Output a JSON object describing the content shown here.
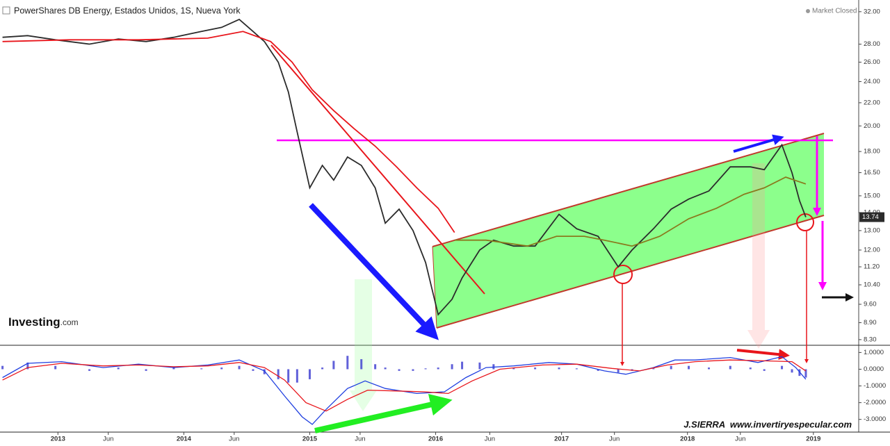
{
  "header": {
    "title": "PowerShares DB Energy, Estados Unidos, 1S, Nueva York",
    "status": "Market Closed"
  },
  "branding": {
    "logo": "Investing",
    "logo_suffix": ".com",
    "credit": "J.SIERRA  www.invertiryespecular.com"
  },
  "chart_data": [
    {
      "type": "line",
      "log_scale": true,
      "xlim": [
        2012.54,
        2019.36
      ],
      "ylim": [
        8.11,
        33.1
      ],
      "yticks": [
        {
          "value": 32,
          "label": "32.00"
        },
        {
          "value": 28,
          "label": "28.00"
        },
        {
          "value": 26,
          "label": "26.00"
        },
        {
          "value": 24,
          "label": "24.00"
        },
        {
          "value": 22,
          "label": "22.00"
        },
        {
          "value": 20,
          "label": "20.00"
        },
        {
          "value": 18,
          "label": "18.00"
        },
        {
          "value": 16.5,
          "label": "16.50"
        },
        {
          "value": 15,
          "label": "15.00"
        },
        {
          "value": 14,
          "label": "14.00"
        },
        {
          "value": 13,
          "label": "13.00"
        },
        {
          "value": 12,
          "label": "12.00"
        },
        {
          "value": 11.2,
          "label": "11.20"
        },
        {
          "value": 10.4,
          "label": "10.40"
        },
        {
          "value": 9.6,
          "label": "9.60"
        },
        {
          "value": 8.9,
          "label": "8.90"
        },
        {
          "value": 8.3,
          "label": "8.30"
        }
      ],
      "series": [
        {
          "color": "#2b2b2b",
          "x": [
            2012.56,
            2012.76,
            2012.98,
            2013.25,
            2013.48,
            2013.7,
            2013.92,
            2014.14,
            2014.3,
            2014.44,
            2014.55,
            2014.64,
            2014.75,
            2014.83,
            2014.9,
            2015.0,
            2015.1,
            2015.19,
            2015.3,
            2015.41,
            2015.52,
            2015.6,
            2015.71,
            2015.82,
            2015.92,
            2016.02,
            2016.13,
            2016.21,
            2016.35,
            2016.46,
            2016.62,
            2016.79,
            2016.98,
            2017.12,
            2017.29,
            2017.45,
            2017.56,
            2017.73,
            2017.87,
            2018.01,
            2018.17,
            2018.34,
            2018.5,
            2018.61,
            2018.75,
            2018.83,
            2018.89,
            2018.94
          ],
          "values": [
            28.8,
            29.0,
            28.5,
            28.0,
            28.6,
            28.3,
            28.8,
            29.5,
            30.0,
            31.0,
            29.5,
            28.3,
            26.0,
            23.0,
            19.5,
            15.5,
            17.0,
            16.0,
            17.6,
            17.0,
            15.5,
            13.4,
            14.2,
            13.0,
            11.4,
            9.2,
            9.8,
            10.7,
            12.0,
            12.5,
            12.2,
            12.2,
            13.9,
            13.1,
            12.7,
            11.2,
            12.0,
            13.1,
            14.2,
            14.8,
            15.3,
            16.9,
            16.9,
            16.7,
            18.5,
            16.5,
            14.7,
            13.74
          ]
        },
        {
          "color": "#e8151b",
          "x": [
            2012.56,
            2013.09,
            2013.64,
            2014.19,
            2014.47,
            2014.69,
            2014.86,
            2015.02,
            2015.19,
            2015.35,
            2015.52,
            2015.69,
            2015.85,
            2016.02,
            2016.15
          ],
          "values": [
            28.3,
            28.5,
            28.5,
            28.7,
            29.5,
            28.3,
            26.0,
            23.2,
            21.3,
            19.8,
            18.4,
            16.9,
            15.5,
            14.25,
            12.9
          ]
        },
        {
          "color": "#8a7a1e",
          "x": [
            2016.15,
            2016.4,
            2016.73,
            2016.96,
            2017.18,
            2017.34,
            2017.56,
            2017.78,
            2018.01,
            2018.23,
            2018.45,
            2018.61,
            2018.78,
            2018.94
          ],
          "values": [
            12.5,
            12.5,
            12.2,
            12.7,
            12.7,
            12.5,
            12.2,
            12.7,
            13.65,
            14.25,
            15.1,
            15.5,
            16.2,
            15.75
          ]
        }
      ]
    },
    {
      "type": "macd",
      "xlim": [
        2012.54,
        2019.36
      ],
      "ylim": [
        -3.76,
        1.39
      ],
      "yticks": [
        {
          "value": 1,
          "label": "1.0000"
        },
        {
          "value": 0,
          "label": "0.0000"
        },
        {
          "value": -1,
          "label": "-1.0000"
        },
        {
          "value": -2,
          "label": "-2.0000"
        },
        {
          "value": -3,
          "label": "-3.0000"
        }
      ],
      "xticks": [
        2013,
        {
          "value": 2013.4,
          "label": "Jun"
        },
        2014,
        {
          "value": 2014.4,
          "label": "Jun"
        },
        2015,
        {
          "value": 2015.4,
          "label": "Jun"
        },
        2016,
        {
          "value": 2016.43,
          "label": "Jun"
        },
        2017,
        {
          "value": 2017.42,
          "label": "Jun"
        },
        2018,
        {
          "value": 2018.42,
          "label": "Jun"
        },
        2019
      ],
      "series": [
        {
          "type": "bar",
          "color": "#3a3ad0",
          "x": [
            2012.56,
            2012.76,
            2012.98,
            2013.25,
            2013.48,
            2013.7,
            2013.92,
            2014.14,
            2014.3,
            2014.44,
            2014.55,
            2014.64,
            2014.75,
            2014.83,
            2014.9,
            2015.0,
            2015.1,
            2015.19,
            2015.3,
            2015.41,
            2015.52,
            2015.6,
            2015.71,
            2015.82,
            2015.92,
            2016.02,
            2016.13,
            2016.21,
            2016.35,
            2016.46,
            2016.62,
            2016.79,
            2016.98,
            2017.12,
            2017.29,
            2017.45,
            2017.56,
            2017.73,
            2017.87,
            2018.01,
            2018.17,
            2018.34,
            2018.5,
            2018.61,
            2018.75,
            2018.83,
            2018.89,
            2018.94
          ],
          "values": [
            0.2,
            0.4,
            0.2,
            -0.1,
            0.1,
            -0.1,
            0.1,
            0.05,
            0.1,
            0.2,
            -0.1,
            -0.3,
            -0.6,
            -0.8,
            -0.8,
            -0.6,
            0.1,
            0.5,
            0.8,
            0.6,
            0.3,
            0.1,
            -0.1,
            -0.1,
            0.05,
            0.1,
            0.3,
            0.45,
            0.4,
            0.3,
            0.1,
            0.1,
            0.1,
            0.05,
            -0.1,
            -0.2,
            -0.1,
            0.1,
            0.2,
            0.2,
            0.1,
            0.2,
            0.1,
            -0.1,
            0.2,
            -0.2,
            -0.4,
            -0.5
          ]
        },
        {
          "type": "line",
          "color": "#1f3fe0",
          "x": [
            2012.56,
            2012.76,
            2013.03,
            2013.36,
            2013.64,
            2013.92,
            2014.19,
            2014.44,
            2014.64,
            2014.8,
            2014.94,
            2015.02,
            2015.13,
            2015.3,
            2015.44,
            2015.6,
            2015.85,
            2016.07,
            2016.24,
            2016.4,
            2016.62,
            2016.9,
            2017.12,
            2017.34,
            2017.51,
            2017.73,
            2017.9,
            2018.06,
            2018.34,
            2018.56,
            2018.75,
            2018.86,
            2018.94
          ],
          "values": [
            -0.5,
            0.35,
            0.45,
            0.1,
            0.3,
            0.1,
            0.25,
            0.55,
            -0.1,
            -1.6,
            -2.85,
            -3.3,
            -2.4,
            -1.15,
            -0.7,
            -1.15,
            -1.45,
            -1.35,
            -0.5,
            0.1,
            0.2,
            0.4,
            0.3,
            -0.1,
            -0.3,
            0.1,
            0.55,
            0.55,
            0.7,
            0.4,
            0.75,
            0.1,
            -0.6
          ]
        },
        {
          "type": "line",
          "color": "#e8151b",
          "x": [
            2012.56,
            2012.76,
            2013.03,
            2013.36,
            2013.64,
            2013.92,
            2014.19,
            2014.44,
            2014.64,
            2014.8,
            2014.97,
            2015.13,
            2015.3,
            2015.46,
            2015.69,
            2015.91,
            2016.1,
            2016.29,
            2016.51,
            2016.85,
            2017.12,
            2017.4,
            2017.62,
            2017.84,
            2018.06,
            2018.34,
            2018.61,
            2018.83,
            2018.94
          ],
          "values": [
            -0.65,
            0.1,
            0.35,
            0.2,
            0.25,
            0.15,
            0.2,
            0.4,
            0.1,
            -0.65,
            -2.0,
            -2.5,
            -1.8,
            -1.25,
            -1.3,
            -1.35,
            -1.45,
            -0.7,
            0,
            0.25,
            0.3,
            0.05,
            -0.1,
            0.25,
            0.45,
            0.55,
            0.5,
            0.45,
            -0.1
          ]
        }
      ]
    }
  ]
}
